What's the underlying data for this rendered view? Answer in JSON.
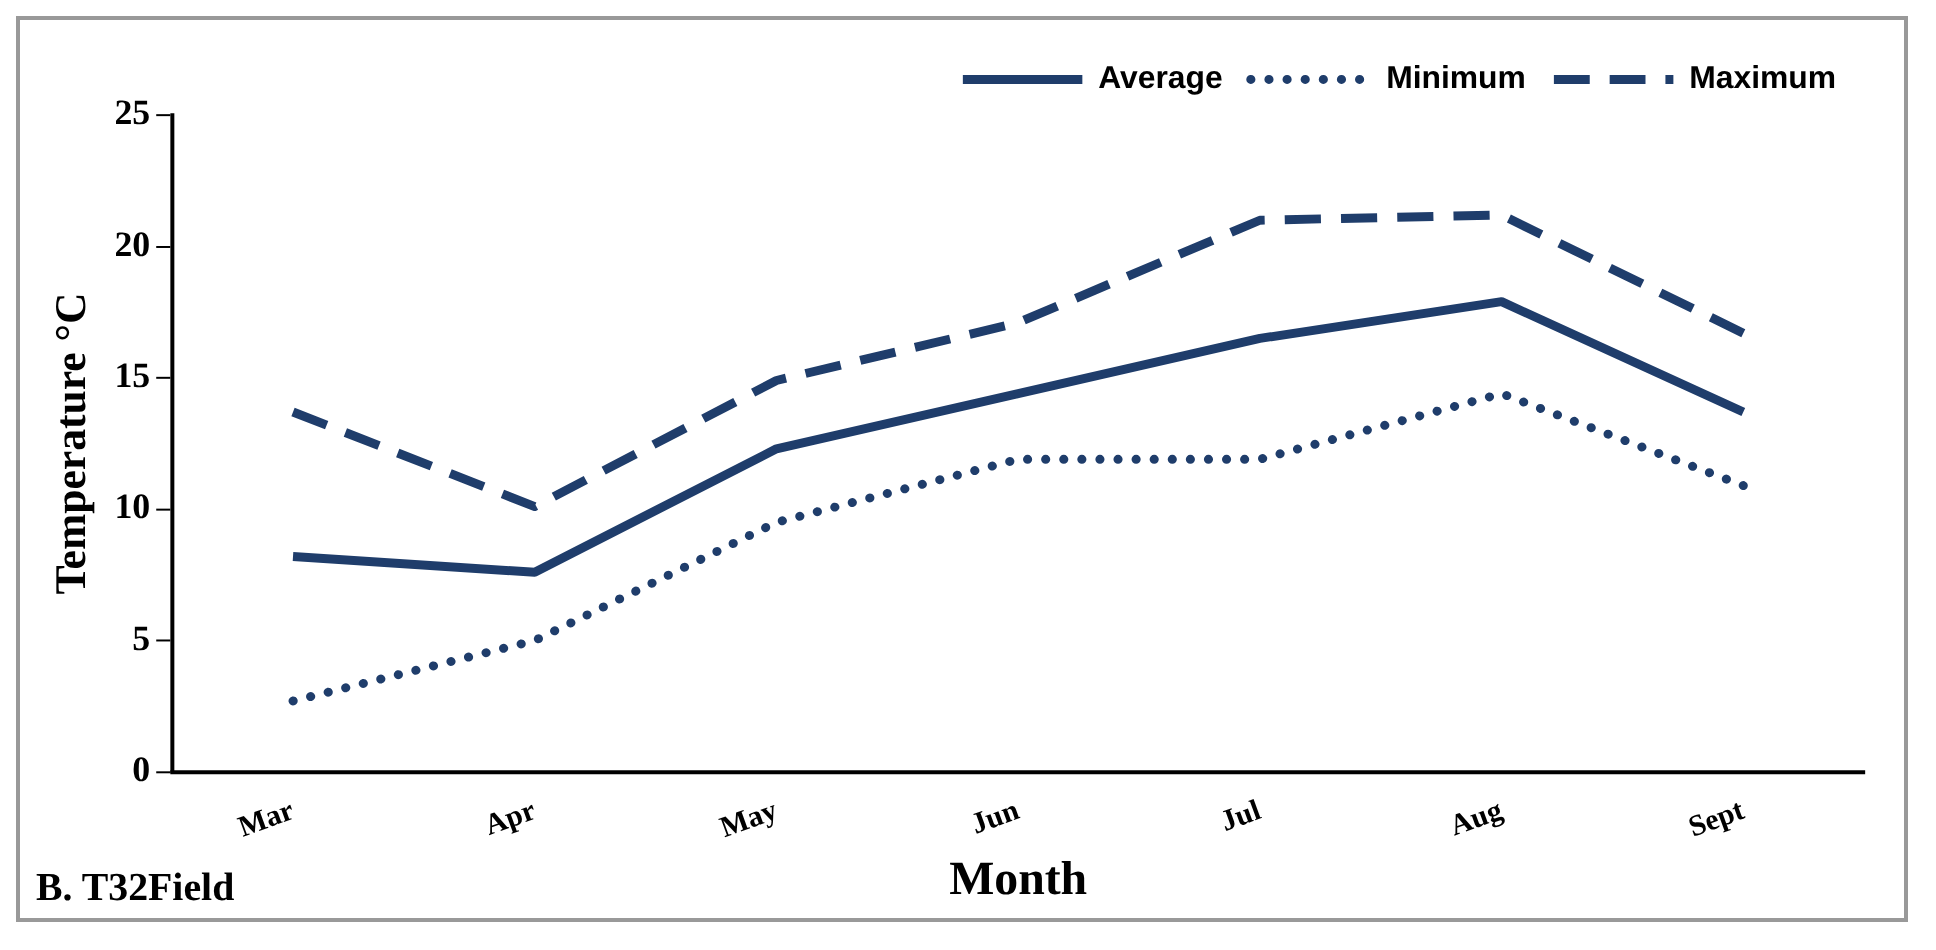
{
  "chart_data": {
    "type": "line",
    "xlabel": "Month",
    "ylabel": "Temperature °C",
    "annotations": [
      "B. T32Field"
    ],
    "categories": [
      "Mar",
      "Apr",
      "May",
      "Jun",
      "Jul",
      "Aug",
      "Sept"
    ],
    "series": [
      {
        "name": "Average",
        "color": "#1f3d6b",
        "line_style": "solid",
        "values": [
          8.2,
          7.6,
          12.3,
          14.4,
          16.5,
          17.9,
          13.7
        ]
      },
      {
        "name": "Minimum",
        "color": "#1f3d6b",
        "line_style": "dotted",
        "values": [
          2.7,
          5.0,
          9.5,
          11.9,
          11.9,
          14.4,
          10.9
        ]
      },
      {
        "name": "Maximum",
        "color": "#1f3d6b",
        "line_style": "dashed",
        "values": [
          13.7,
          10.1,
          14.9,
          17.1,
          21.0,
          21.2,
          16.7
        ]
      }
    ],
    "ylim": [
      0,
      25
    ],
    "yticks": [
      0,
      5,
      10,
      15,
      20,
      25
    ],
    "grid": false,
    "legend": "top right",
    "marker": "none"
  }
}
